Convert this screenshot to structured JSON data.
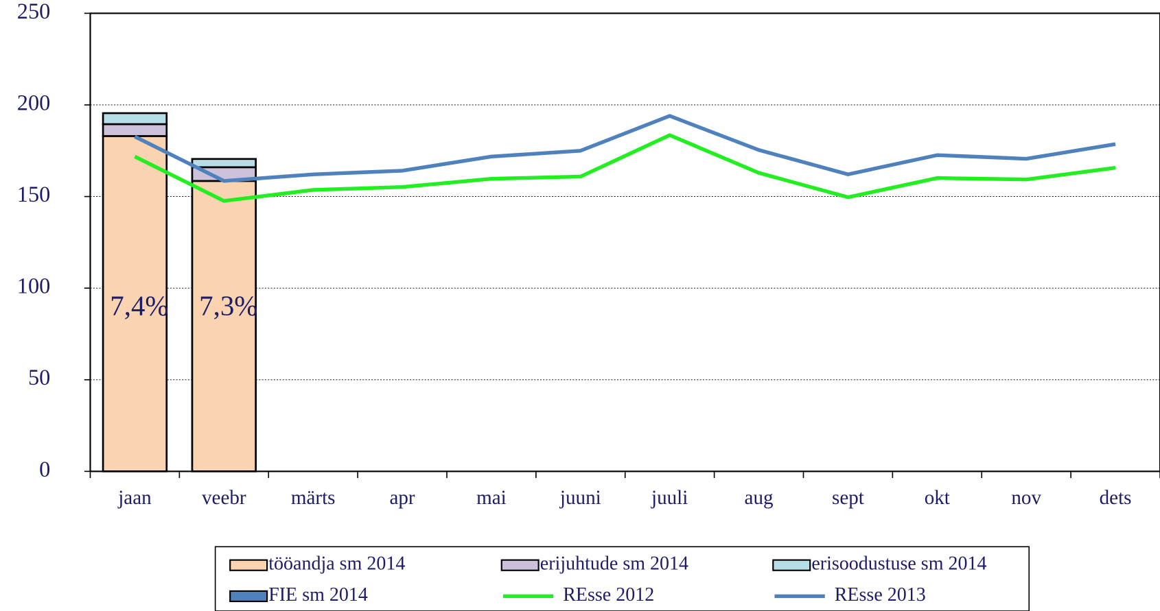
{
  "chart_data": {
    "type": "bar",
    "categories": [
      "jaan",
      "veebr",
      "märts",
      "apr",
      "mai",
      "juuni",
      "juuli",
      "aug",
      "sept",
      "okt",
      "nov",
      "dets"
    ],
    "series": [
      {
        "name": "tööandja sm 2014",
        "type": "bar",
        "color": "#fad3b0",
        "values": [
          183,
          158.5,
          null,
          null,
          null,
          null,
          null,
          null,
          null,
          null,
          null,
          null
        ]
      },
      {
        "name": "erijuhtude sm 2014",
        "type": "bar",
        "color": "#ccc0da",
        "values": [
          6.5,
          7.5,
          null,
          null,
          null,
          null,
          null,
          null,
          null,
          null,
          null,
          null
        ]
      },
      {
        "name": "erisoodustuse sm 2014",
        "type": "bar",
        "color": "#b7dee8",
        "values": [
          6,
          4.5,
          null,
          null,
          null,
          null,
          null,
          null,
          null,
          null,
          null,
          null
        ]
      },
      {
        "name": "FIE sm 2014",
        "type": "bar",
        "color": "#4f81bd",
        "values": [
          null,
          null,
          null,
          null,
          null,
          null,
          null,
          null,
          null,
          null,
          null,
          null
        ]
      },
      {
        "name": "REsse 2012",
        "type": "line",
        "color": "#22ee22",
        "values": [
          171.8,
          147.6,
          153.6,
          155.2,
          159.7,
          160.9,
          183.5,
          162.9,
          149.6,
          160.1,
          159.3,
          165.7
        ]
      },
      {
        "name": "REsse 2013",
        "type": "line",
        "color": "#4f81bd",
        "values": [
          182.7,
          158.5,
          162.1,
          164.1,
          171.8,
          175,
          194,
          175.4,
          162.1,
          172.6,
          170.6,
          178.6
        ]
      }
    ],
    "annotations": [
      "7,4%",
      "7,3%"
    ],
    "ylim": [
      0,
      250
    ],
    "yticks": [
      0,
      50,
      100,
      150,
      200,
      250
    ],
    "grid": true
  }
}
